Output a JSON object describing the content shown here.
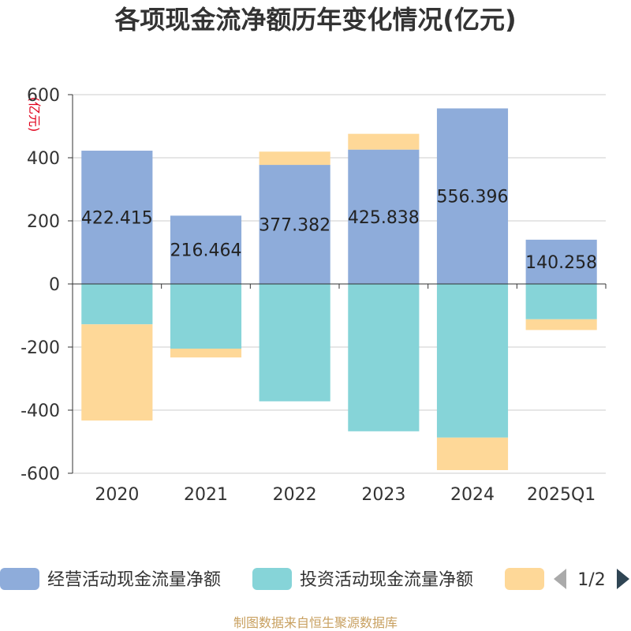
{
  "chart_data": {
    "type": "bar",
    "stacked": true,
    "title": "各项现金流净额历年变化情况(亿元)",
    "ylabel": "(亿元)",
    "ylim": [
      -600,
      600
    ],
    "yticks": [
      600,
      400,
      200,
      0,
      -200,
      -400,
      -600
    ],
    "categories": [
      "2020",
      "2021",
      "2022",
      "2023",
      "2024",
      "2025Q1"
    ],
    "series": [
      {
        "name": "经营活动现金流量净额",
        "color": "#8eacda",
        "values": [
          422.415,
          216.464,
          377.382,
          425.838,
          556.396,
          140.258
        ],
        "show_labels": true
      },
      {
        "name": "投资活动现金流量净额",
        "color": "#86d4d8",
        "values": [
          -128,
          -205,
          -372,
          -467,
          -487,
          -112
        ],
        "show_labels": false
      },
      {
        "name": "",
        "color": "#fed898",
        "values": [
          -305,
          -28,
          42,
          50,
          -103,
          -34
        ],
        "show_labels": false
      }
    ],
    "legend": {
      "position": "bottom",
      "page": "1/2"
    },
    "source": "制图数据来自恒生聚源数据库"
  }
}
